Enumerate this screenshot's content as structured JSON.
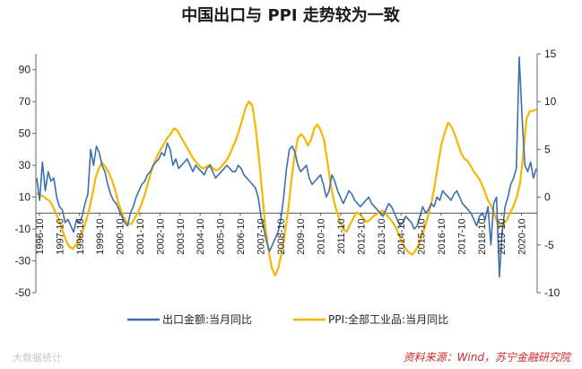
{
  "chart_data": {
    "type": "line",
    "title": "中国出口与 PPI 走势较为一致",
    "x_labels": [
      "1996-10",
      "1997-10",
      "1998-10",
      "1999-10",
      "2000-10",
      "2001-10",
      "2002-10",
      "2003-10",
      "2004-10",
      "2005-10",
      "2006-10",
      "2007-10",
      "2008-10",
      "2009-10",
      "2010-10",
      "2011-10",
      "2012-10",
      "2013-10",
      "2014-10",
      "2015-10",
      "2016-10",
      "2017-10",
      "2018-10",
      "2019-10",
      "2020-10"
    ],
    "left_axis": {
      "ylim": [
        -50,
        100
      ],
      "ticks": [
        -50,
        -30,
        -10,
        10,
        30,
        50,
        70,
        90
      ]
    },
    "right_axis": {
      "ylim": [
        -10,
        15
      ],
      "ticks": [
        -10,
        -5,
        0,
        5,
        10,
        15
      ]
    },
    "series": [
      {
        "name": "出口金额:当月同比",
        "axis": "left",
        "color": "#3d6fb0",
        "values": [
          22,
          8,
          32,
          14,
          26,
          20,
          22,
          10,
          4,
          2,
          -6,
          -4,
          -8,
          -12,
          -4,
          -6,
          -2,
          6,
          12,
          40,
          30,
          42,
          38,
          30,
          26,
          18,
          12,
          8,
          6,
          2,
          -2,
          -6,
          -8,
          0,
          4,
          10,
          14,
          18,
          20,
          24,
          26,
          30,
          32,
          34,
          38,
          36,
          44,
          40,
          30,
          34,
          28,
          30,
          32,
          34,
          30,
          26,
          30,
          28,
          26,
          24,
          28,
          30,
          26,
          22,
          24,
          26,
          28,
          30,
          28,
          26,
          26,
          30,
          28,
          24,
          22,
          20,
          18,
          16,
          10,
          -2,
          -10,
          -18,
          -24,
          -20,
          -16,
          -12,
          -4,
          10,
          28,
          40,
          42,
          38,
          30,
          26,
          28,
          30,
          22,
          18,
          20,
          22,
          24,
          18,
          10,
          14,
          24,
          20,
          14,
          10,
          6,
          10,
          14,
          12,
          8,
          6,
          4,
          6,
          8,
          10,
          6,
          4,
          2,
          0,
          -2,
          2,
          6,
          4,
          0,
          -4,
          -8,
          -6,
          -2,
          -4,
          -6,
          -10,
          -8,
          -2,
          4,
          0,
          2,
          6,
          4,
          10,
          8,
          14,
          12,
          10,
          8,
          12,
          14,
          10,
          6,
          4,
          2,
          0,
          -4,
          -8,
          -2,
          0,
          -4,
          4,
          -20,
          6,
          10,
          -40,
          -12,
          4,
          10,
          18,
          22,
          28,
          98,
          60,
          30,
          26,
          32,
          22,
          28
        ]
      },
      {
        "name": "PPI:全部工业品:当月同比",
        "axis": "right",
        "color": "#f5b800",
        "values": [
          0.4,
          0.2,
          0.1,
          -0.2,
          -0.4,
          -1.0,
          -1.8,
          -2.6,
          -3.6,
          -4.6,
          -5.2,
          -5.4,
          -5.0,
          -4.4,
          -3.6,
          -2.6,
          -1.4,
          0.2,
          2.0,
          3.0,
          3.6,
          3.2,
          2.6,
          1.8,
          0.8,
          -0.6,
          -1.6,
          -2.4,
          -2.8,
          -2.8,
          -2.2,
          -1.6,
          -0.8,
          0.2,
          1.4,
          2.6,
          3.6,
          4.4,
          5.0,
          5.6,
          6.2,
          6.6,
          7.2,
          7.0,
          6.4,
          5.8,
          5.2,
          4.6,
          4.0,
          3.6,
          3.2,
          3.0,
          3.2,
          3.4,
          3.0,
          2.8,
          3.0,
          3.4,
          3.8,
          4.4,
          5.2,
          6.0,
          7.0,
          8.2,
          9.4,
          10.0,
          9.6,
          7.4,
          4.2,
          0.6,
          -3.0,
          -5.6,
          -7.4,
          -8.2,
          -7.4,
          -5.8,
          -3.8,
          -1.4,
          1.8,
          4.4,
          6.2,
          6.6,
          6.2,
          5.4,
          6.0,
          7.2,
          7.6,
          7.0,
          6.0,
          3.8,
          1.4,
          -0.4,
          -1.6,
          -2.6,
          -3.4,
          -3.6,
          -2.8,
          -2.2,
          -1.6,
          -1.8,
          -2.2,
          -2.6,
          -2.4,
          -2.0,
          -1.8,
          -1.6,
          -1.4,
          -1.8,
          -2.2,
          -2.6,
          -3.2,
          -4.0,
          -4.8,
          -5.4,
          -5.8,
          -6.0,
          -5.6,
          -5.0,
          -4.0,
          -3.0,
          -1.8,
          -0.4,
          1.4,
          3.6,
          5.6,
          6.8,
          7.8,
          7.4,
          6.6,
          5.6,
          4.6,
          4.0,
          3.8,
          3.2,
          2.6,
          2.2,
          1.6,
          0.8,
          -0.2,
          -0.8,
          -1.6,
          -2.6,
          -3.0,
          -2.8,
          -2.4,
          -1.6,
          -1.0,
          0.0,
          1.4,
          4.4,
          8.2,
          9.0,
          9.0,
          9.2
        ]
      }
    ],
    "legend": [
      "出口金额:当月同比",
      "PPI:全部工业品:当月同比"
    ],
    "legend_position": "bottom",
    "source": "资料来源：Wind，苏宁金融研究院",
    "watermark": "大数据统计"
  }
}
